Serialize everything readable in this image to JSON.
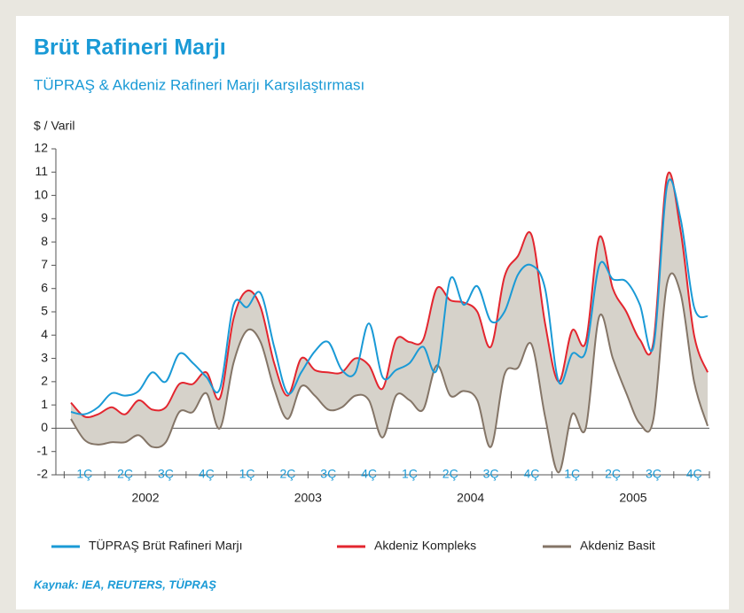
{
  "chart_data": {
    "type": "line",
    "title": "Brüt Rafineri Marjı",
    "subtitle": "TÜPRAŞ & Akdeniz Rafineri Marjı Karşılaştırması",
    "y_label": "$ / Varil",
    "source": "Kaynak: IEA, REUTERS, TÜPRAŞ",
    "quarters": [
      "1Ç",
      "2Ç",
      "3Ç",
      "4Ç",
      "1Ç",
      "2Ç",
      "3Ç",
      "4Ç",
      "1Ç",
      "2Ç",
      "3Ç",
      "4Ç",
      "1Ç",
      "2Ç",
      "3Ç",
      "4Ç"
    ],
    "years": [
      "2002",
      "2003",
      "2004",
      "2005"
    ],
    "ylim": [
      -2,
      12
    ],
    "yticks": [
      -2,
      -1,
      0,
      1,
      2,
      3,
      4,
      5,
      6,
      7,
      8,
      9,
      10,
      11,
      12
    ],
    "fill_between": [
      "Akdeniz Kompleks",
      "Akdeniz Basit"
    ],
    "fill_color": "#d6d2ca",
    "series": [
      {
        "name": "TÜPRAŞ Brüt Rafineri Marjı",
        "color": "#1a9ad6",
        "values": [
          0.7,
          0.6,
          0.9,
          1.5,
          1.4,
          1.6,
          2.4,
          2.0,
          3.2,
          2.8,
          2.2,
          1.7,
          5.3,
          5.2,
          5.8,
          3.5,
          1.5,
          2.4,
          3.3,
          3.7,
          2.5,
          2.4,
          4.5,
          2.2,
          2.5,
          2.8,
          3.5,
          2.5,
          6.4,
          5.3,
          6.1,
          4.6,
          5.0,
          6.6,
          7.0,
          6.0,
          2.0,
          3.2,
          3.3,
          7.0,
          6.4,
          6.3,
          5.3,
          3.5,
          10.4,
          9.0,
          5.2,
          4.8
        ]
      },
      {
        "name": "Akdeniz Kompleks",
        "color": "#e3262f",
        "values": [
          1.1,
          0.5,
          0.6,
          0.9,
          0.6,
          1.2,
          0.8,
          0.9,
          1.9,
          1.9,
          2.4,
          1.3,
          4.7,
          5.9,
          5.2,
          2.8,
          1.4,
          3.0,
          2.5,
          2.4,
          2.4,
          3.0,
          2.7,
          1.7,
          3.8,
          3.7,
          3.8,
          6.0,
          5.5,
          5.4,
          5.0,
          3.5,
          6.5,
          7.4,
          8.3,
          4.5,
          2.0,
          4.2,
          3.7,
          8.2,
          6.0,
          5.0,
          3.8,
          3.7,
          10.8,
          8.5,
          4.0,
          2.4
        ]
      },
      {
        "name": "Akdeniz Basit",
        "color": "#847567",
        "values": [
          0.4,
          -0.5,
          -0.7,
          -0.6,
          -0.6,
          -0.3,
          -0.8,
          -0.6,
          0.7,
          0.7,
          1.5,
          0.0,
          2.8,
          4.2,
          3.7,
          1.7,
          0.4,
          1.8,
          1.4,
          0.8,
          0.9,
          1.4,
          1.2,
          -0.4,
          1.4,
          1.2,
          0.8,
          2.7,
          1.4,
          1.6,
          1.2,
          -0.8,
          2.3,
          2.6,
          3.6,
          0.5,
          -1.9,
          0.6,
          0.0,
          4.8,
          3.0,
          1.5,
          0.2,
          0.4,
          6.2,
          5.8,
          2.0,
          0.1
        ]
      }
    ]
  }
}
